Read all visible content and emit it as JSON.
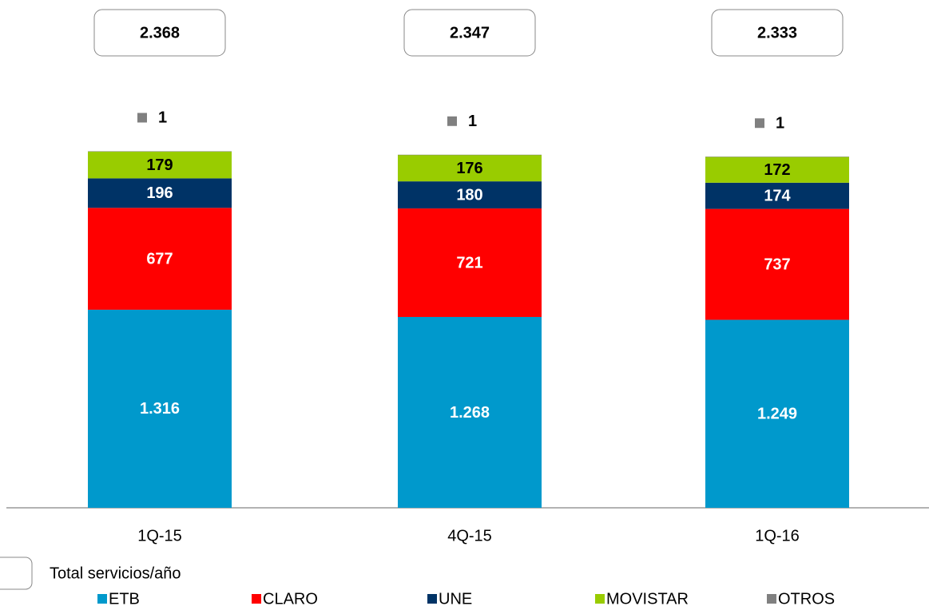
{
  "chart_data": {
    "type": "stacked_bar",
    "categories": [
      "1Q-15",
      "4Q-15",
      "1Q-16"
    ],
    "series": [
      {
        "name": "ETB",
        "color": "#0099cc",
        "values": [
          1316,
          1268,
          1249
        ],
        "value_labels": [
          "1.316",
          "1.268",
          "1.249"
        ]
      },
      {
        "name": "CLARO",
        "color": "#ff0000",
        "values": [
          677,
          721,
          737
        ]
      },
      {
        "name": "UNE",
        "color": "#003366",
        "values": [
          196,
          180,
          174
        ]
      },
      {
        "name": "MOVISTAR",
        "color": "#99cc00",
        "values": [
          179,
          176,
          172
        ]
      },
      {
        "name": "OTROS",
        "color": "#808080",
        "values": [
          1,
          1,
          1
        ]
      }
    ],
    "totals": {
      "name": "Total servicios/año",
      "values": [
        2368,
        2347,
        2333
      ],
      "value_labels": [
        "2.368",
        "2.347",
        "2.333"
      ]
    }
  }
}
